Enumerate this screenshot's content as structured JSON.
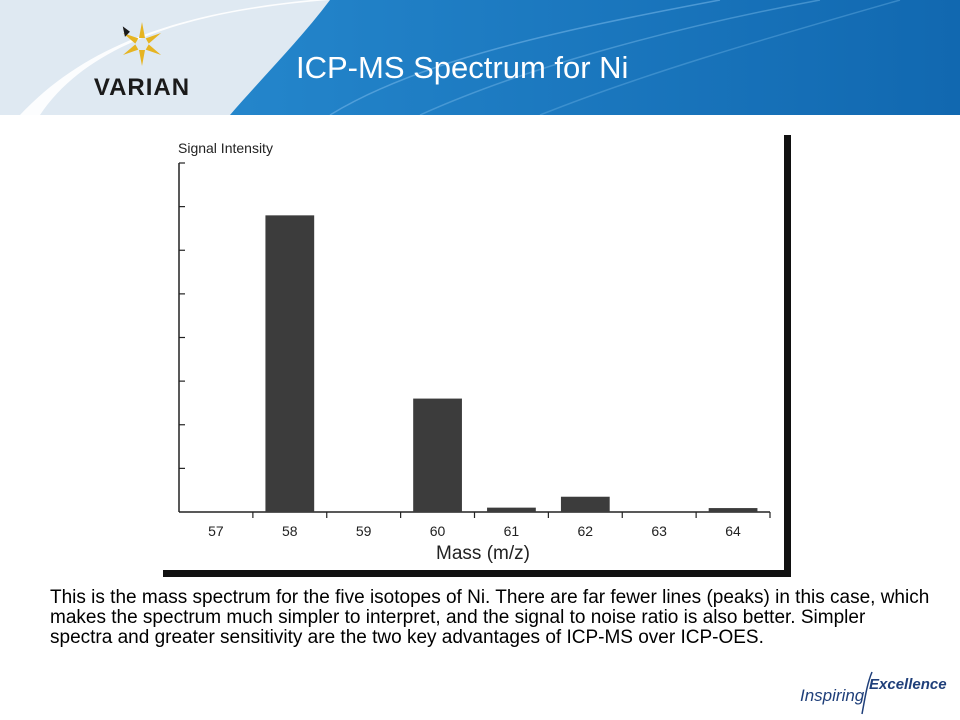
{
  "header": {
    "title": "ICP-MS Spectrum for Ni",
    "logo_text": "VARIAN",
    "colors": {
      "band": "#1f7fc6",
      "band_dark": "#115c9c",
      "logo_star": "#e6b422"
    }
  },
  "chart_data": {
    "type": "bar",
    "title": "",
    "xlabel": "Mass (m/z)",
    "ylabel": "Signal Intensity",
    "categories": [
      "57",
      "58",
      "59",
      "60",
      "61",
      "62",
      "63",
      "64"
    ],
    "values": [
      0,
      68,
      0,
      26,
      1,
      3.5,
      0,
      0.9
    ],
    "ylim": [
      0,
      80
    ],
    "grid": false,
    "bar_color": "#3c3c3c"
  },
  "caption": "This is the mass spectrum for the five isotopes of Ni.  There are far fewer lines (peaks) in this case, which makes the spectrum much simpler to interpret, and the signal to noise ratio is also better.  Simpler spectra and greater sensitivity are the two key advantages of ICP-MS over ICP-OES.",
  "tagline": {
    "word1": "Inspiring",
    "word2": "Excellence"
  }
}
